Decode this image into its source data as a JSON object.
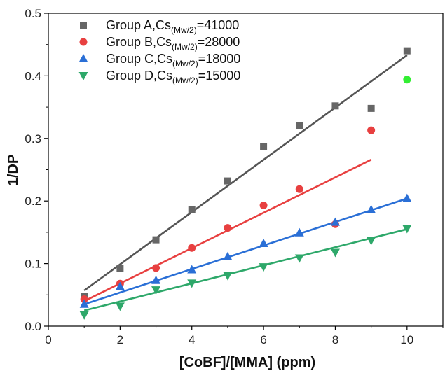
{
  "chart_data": {
    "type": "scatter",
    "xlabel": "[CoBF]/[MMA] (ppm)",
    "ylabel": "1/DP",
    "xlim": [
      0,
      11
    ],
    "ylim": [
      0,
      0.5
    ],
    "x_ticks": [
      0,
      2,
      4,
      6,
      8,
      10
    ],
    "x_tick_labels": [
      "0",
      "2",
      "4",
      "6",
      "8",
      "10"
    ],
    "y_ticks": [
      0.0,
      0.1,
      0.2,
      0.3,
      0.4,
      0.5
    ],
    "y_tick_labels": [
      "0.0",
      "0.1",
      "0.2",
      "0.3",
      "0.4",
      "0.5"
    ],
    "grid": false,
    "legend_position": "top-left",
    "series": [
      {
        "name": "Group A,Cs",
        "name_sub": "(Mw/2)",
        "name_suffix": "=41000",
        "marker": "square",
        "color": "#666666",
        "line_color": "#555555",
        "x": [
          1,
          2,
          3,
          4,
          5,
          6,
          7,
          8,
          9,
          10
        ],
        "y": [
          0.048,
          0.092,
          0.138,
          0.186,
          0.232,
          0.287,
          0.321,
          0.352,
          0.348,
          0.44
        ],
        "fit": {
          "x": [
            1,
            10
          ],
          "y": [
            0.057,
            0.433
          ]
        }
      },
      {
        "name": "Group B,Cs",
        "name_sub": "(Mw/2)",
        "name_suffix": "=28000",
        "marker": "circle",
        "color": "#e84040",
        "line_color": "#e84040",
        "x": [
          1,
          2,
          3,
          4,
          5,
          6,
          7,
          8,
          9,
          10
        ],
        "y": [
          0.043,
          0.068,
          0.093,
          0.125,
          0.157,
          0.193,
          0.219,
          0.163,
          0.313,
          0.394
        ],
        "point_colors": [
          "#e84040",
          "#e84040",
          "#e84040",
          "#e84040",
          "#e84040",
          "#e84040",
          "#e84040",
          "#e84040",
          "#e84040",
          "#33ee33"
        ],
        "fit": {
          "x": [
            1,
            9
          ],
          "y": [
            0.04,
            0.266
          ]
        }
      },
      {
        "name": "Group C,Cs",
        "name_sub": "(Mw/2)",
        "name_suffix": "=18000",
        "marker": "triangle-up",
        "color": "#2a6fd6",
        "line_color": "#2a6fd6",
        "x": [
          1,
          2,
          3,
          4,
          5,
          6,
          7,
          8,
          9,
          10
        ],
        "y": [
          0.035,
          0.063,
          0.073,
          0.09,
          0.111,
          0.132,
          0.149,
          0.166,
          0.186,
          0.204
        ],
        "fit": {
          "x": [
            1,
            10
          ],
          "y": [
            0.035,
            0.204
          ]
        }
      },
      {
        "name": "Group D,Cs",
        "name_sub": "(Mw/2)",
        "name_suffix": "=15000",
        "marker": "triangle-down",
        "color": "#2ea86a",
        "line_color": "#2ea86a",
        "x": [
          1,
          2,
          3,
          4,
          5,
          6,
          7,
          8,
          9,
          10
        ],
        "y": [
          0.018,
          0.032,
          0.058,
          0.069,
          0.081,
          0.095,
          0.109,
          0.118,
          0.137,
          0.156
        ],
        "fit": {
          "x": [
            1,
            10
          ],
          "y": [
            0.025,
            0.155
          ]
        }
      }
    ]
  }
}
